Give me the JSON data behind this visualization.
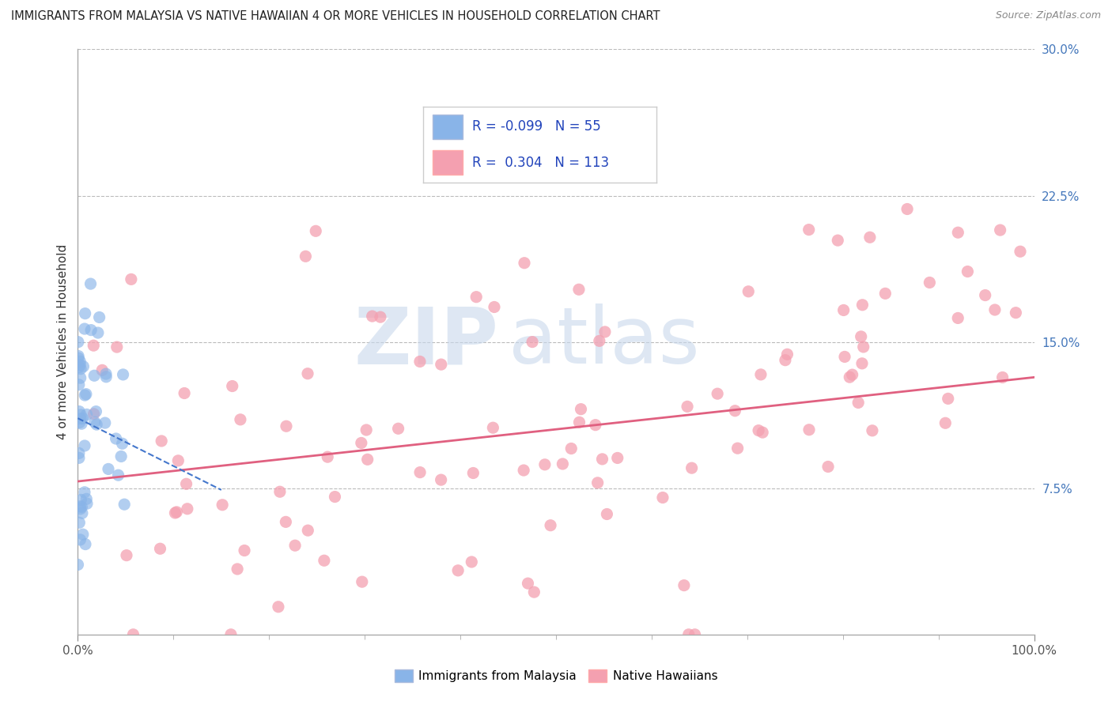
{
  "title": "IMMIGRANTS FROM MALAYSIA VS NATIVE HAWAIIAN 4 OR MORE VEHICLES IN HOUSEHOLD CORRELATION CHART",
  "source": "Source: ZipAtlas.com",
  "ylabel": "4 or more Vehicles in Household",
  "xlim": [
    0,
    100
  ],
  "ylim": [
    0,
    30
  ],
  "blue_R": -0.099,
  "blue_N": 55,
  "pink_R": 0.304,
  "pink_N": 113,
  "blue_color": "#89B4E8",
  "pink_color": "#F4A0B0",
  "blue_edge_color": "#89B4E8",
  "pink_edge_color": "#F4A0B0",
  "blue_line_color": "#4477CC",
  "pink_line_color": "#E06080",
  "watermark_color": "#C8D8EC",
  "ytick_color": "#4477BB",
  "legend_label_blue": "Immigrants from Malaysia",
  "legend_label_pink": "Native Hawaiians",
  "blue_seed": 42,
  "pink_seed": 99
}
